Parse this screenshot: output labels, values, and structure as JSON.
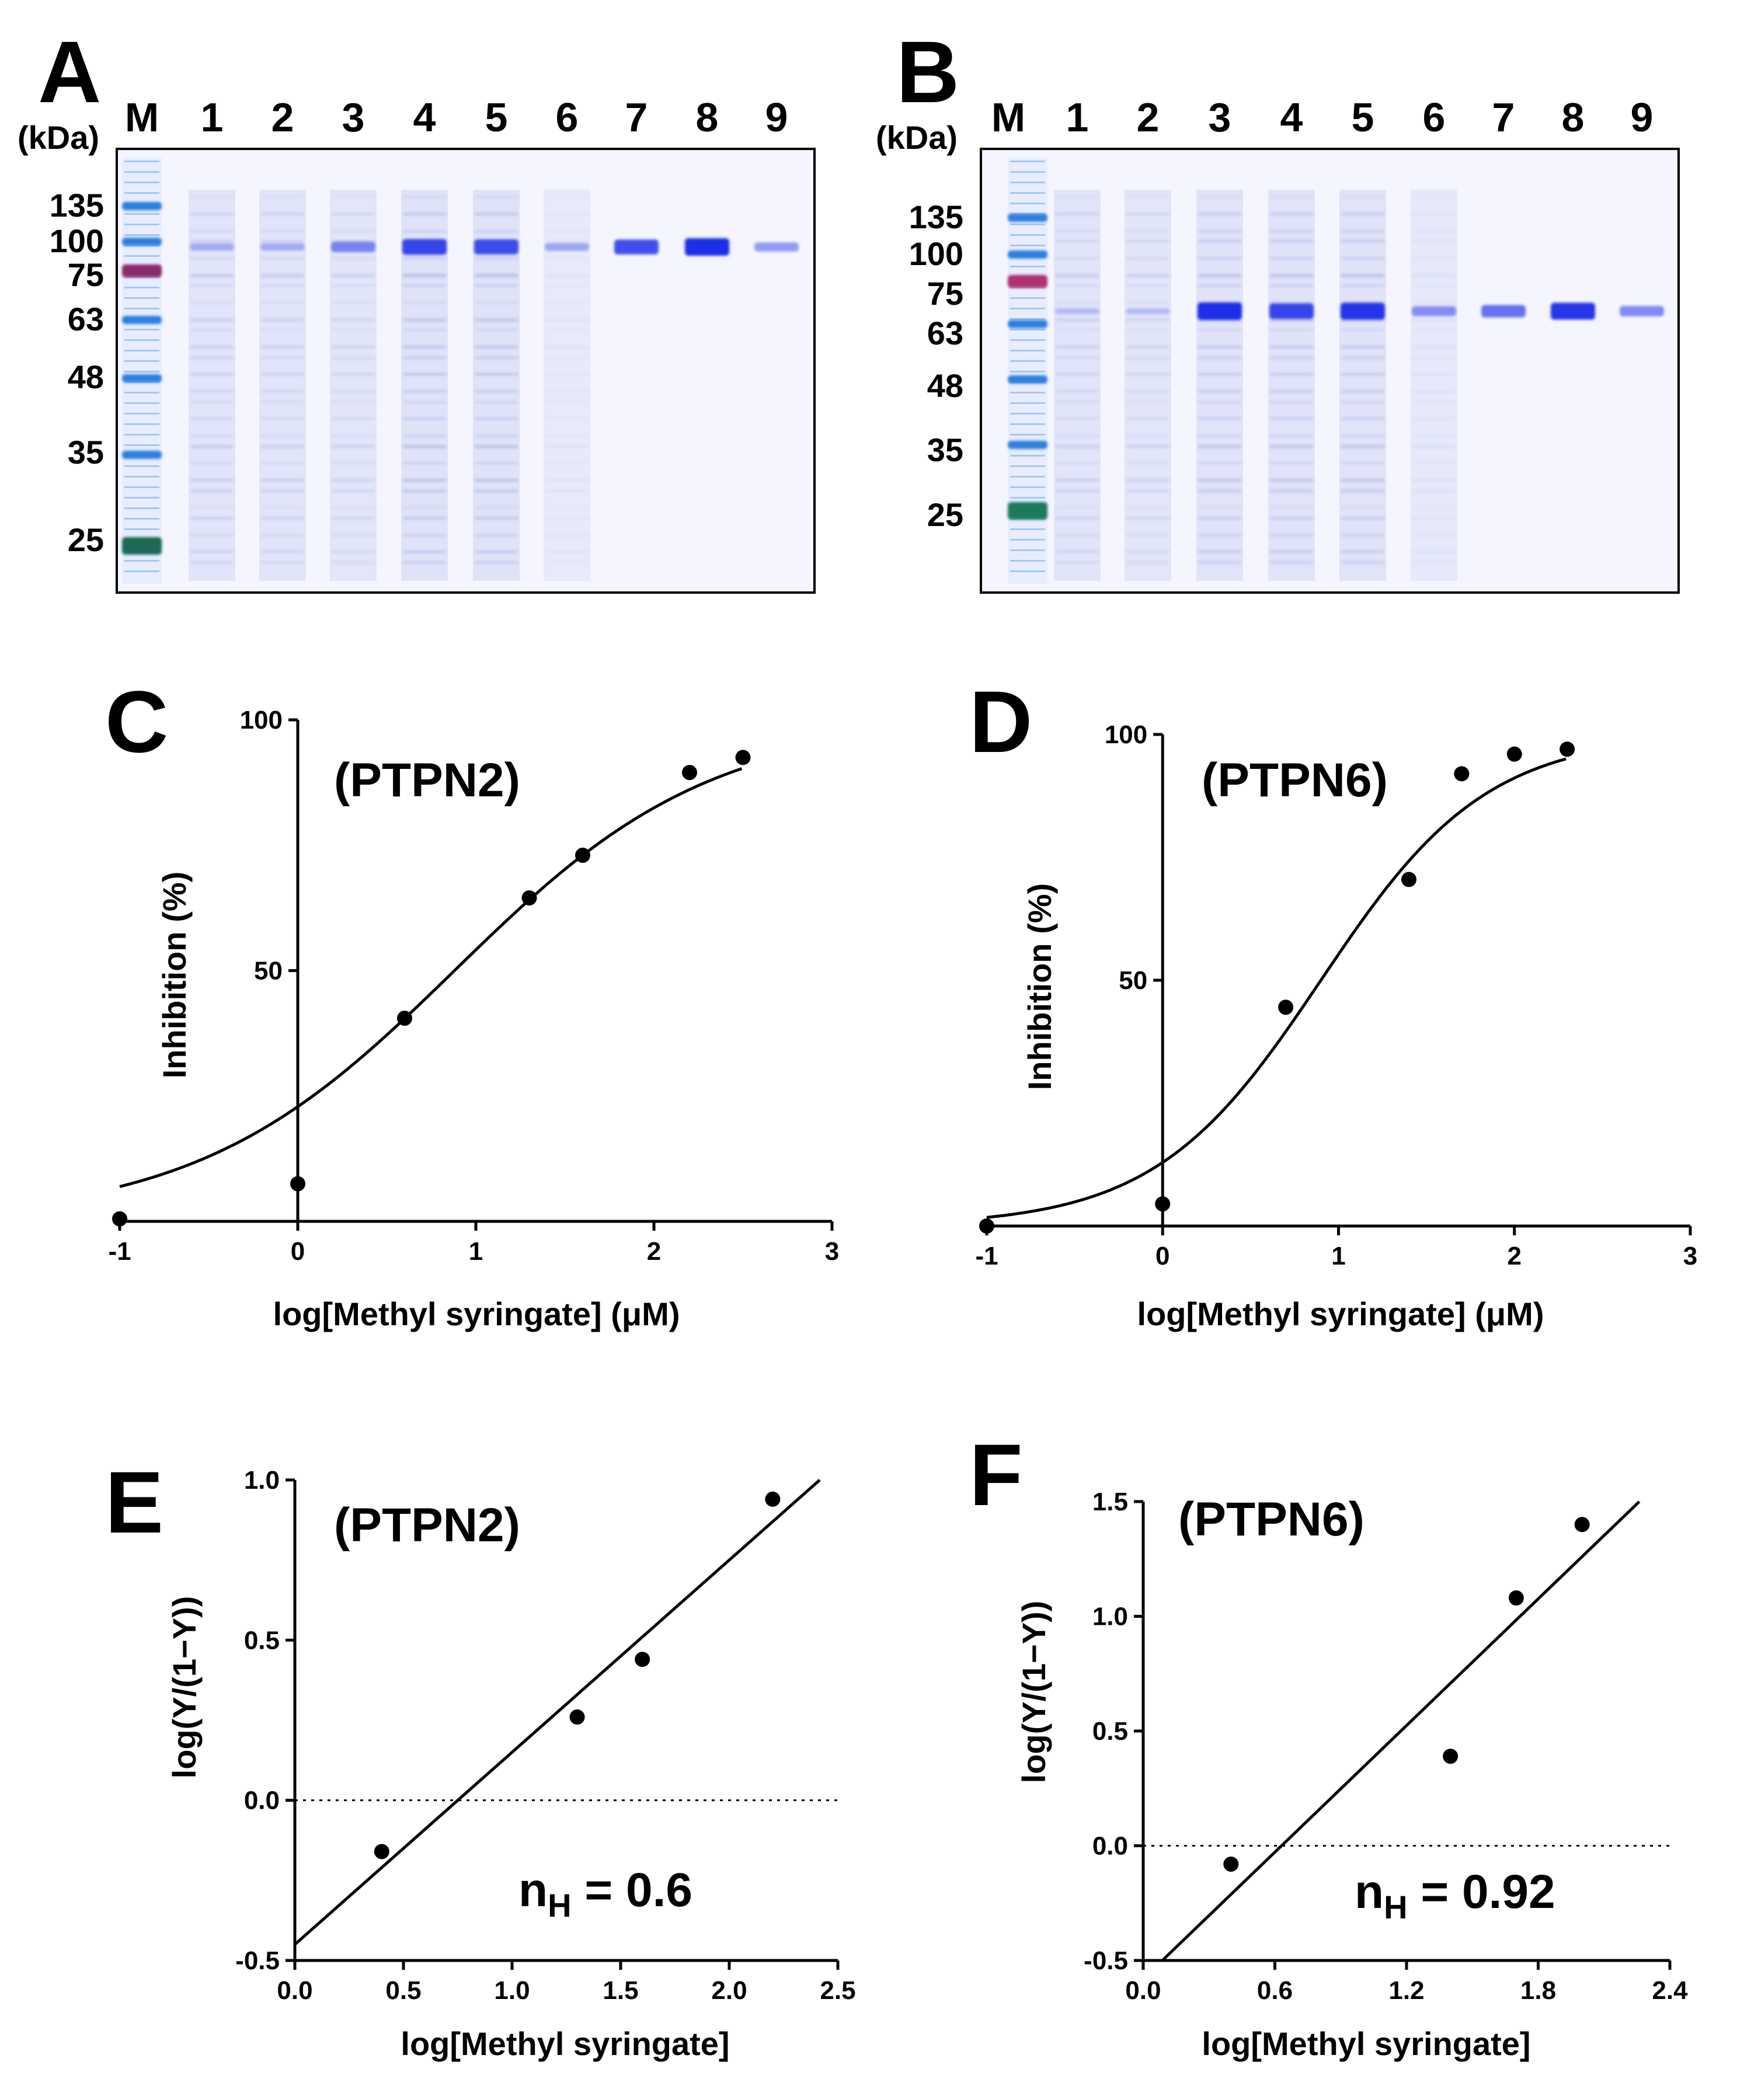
{
  "panel_labels": {
    "a": "A",
    "b": "B",
    "c": "C",
    "d": "D",
    "e": "E",
    "f": "F"
  },
  "gels": [
    {
      "unit_label": "(kDa)",
      "lane_labels": [
        "M",
        "1",
        "2",
        "3",
        "4",
        "5",
        "6",
        "7",
        "8",
        "9"
      ],
      "markers": [
        "135",
        "100",
        "75",
        "63",
        "48",
        "35",
        "25"
      ],
      "colors": {
        "marker_blue": "#2f7fe0",
        "marker_magenta": "#8a2a6a",
        "marker_green": "#1f6b55",
        "band": "#1a2ee8",
        "smear": "#8a95d8",
        "gel_bg": "#f4f5ff"
      },
      "lane_intensity": [
        0,
        0.55,
        0.5,
        0.45,
        0.7,
        0.7,
        0.15,
        0,
        0,
        0
      ],
      "target_band_intensity": [
        0,
        0.2,
        0.2,
        0.45,
        0.85,
        0.8,
        0.25,
        0.8,
        1.0,
        0.35
      ]
    },
    {
      "unit_label": "(kDa)",
      "lane_labels": [
        "M",
        "1",
        "2",
        "3",
        "4",
        "5",
        "6",
        "7",
        "8",
        "9"
      ],
      "markers": [
        "135",
        "100",
        "75",
        "63",
        "48",
        "35",
        "25"
      ],
      "colors": {
        "marker_blue": "#2f7fe0",
        "marker_magenta": "#b03070",
        "marker_green": "#1f7a5a",
        "band": "#1a2ee8",
        "smear": "#8a95d8",
        "gel_bg": "#f4f5ff"
      },
      "lane_intensity": [
        0,
        0.5,
        0.45,
        0.65,
        0.65,
        0.65,
        0.2,
        0,
        0,
        0
      ],
      "target_band_intensity": [
        0,
        0.1,
        0.1,
        1.0,
        0.85,
        0.95,
        0.4,
        0.6,
        0.95,
        0.45
      ]
    }
  ],
  "chart_data": [
    {
      "panel": "C",
      "type": "scatter",
      "title": "(PTPN2)",
      "xlabel": "log[Methyl syringate] (μM)",
      "ylabel": "Inhibition (%)",
      "xlim": [
        -1,
        3
      ],
      "ylim": [
        0,
        100
      ],
      "xticks": [
        "-1",
        "0",
        "1",
        "2",
        "3"
      ],
      "yticks": [
        "50",
        "100"
      ],
      "points": {
        "x": [
          -1,
          0,
          0.6,
          1.3,
          1.6,
          2.2,
          2.5
        ],
        "y": [
          0.5,
          7.5,
          40.5,
          64.5,
          73,
          89.5,
          92.5
        ]
      },
      "fit": {
        "type": "sigmoid",
        "logEC50": 0.88,
        "hill": 0.6,
        "bottom": 0,
        "top": 100
      }
    },
    {
      "panel": "D",
      "type": "scatter",
      "title": "(PTPN6)",
      "xlabel": "log[Methyl syringate] (μM)",
      "ylabel": "Inhibition (%)",
      "xlim": [
        -1,
        3
      ],
      "ylim": [
        0,
        100
      ],
      "xticks": [
        "-1",
        "0",
        "1",
        "2",
        "3"
      ],
      "yticks": [
        "50",
        "100"
      ],
      "points": {
        "x": [
          -1,
          0,
          0.7,
          1.4,
          1.7,
          2.0,
          2.3
        ],
        "y": [
          0,
          4.5,
          44.5,
          70.5,
          92,
          96,
          97
        ]
      },
      "fit": {
        "type": "sigmoid",
        "logEC50": 0.9,
        "hill": 0.92,
        "bottom": 0,
        "top": 100
      }
    },
    {
      "panel": "E",
      "type": "scatter",
      "title": "(PTPN2)",
      "xlabel": "log[Methyl syringate]",
      "ylabel": "log(Y/(1−Y))",
      "xlim": [
        0,
        2.5
      ],
      "ylim": [
        -0.5,
        1.0
      ],
      "xticks": [
        "0.0",
        "0.5",
        "1.0",
        "1.5",
        "2.0",
        "2.5"
      ],
      "yticks": [
        "-0.5",
        "0.0",
        "0.5",
        "1.0"
      ],
      "points": {
        "x": [
          0.4,
          1.3,
          1.6,
          2.2
        ],
        "y": [
          -0.16,
          0.26,
          0.44,
          0.94
        ]
      },
      "fit": {
        "type": "linear",
        "slope": 0.6,
        "intercept": -0.45
      },
      "reference_y": 0.0,
      "annotation": {
        "main": "n",
        "sub": "H",
        "value": " = 0.6"
      }
    },
    {
      "panel": "F",
      "type": "scatter",
      "title": "(PTPN6)",
      "xlabel": "log[Methyl syringate]",
      "ylabel": "log(Y/(1−Y))",
      "xlim": [
        0,
        2.4
      ],
      "ylim": [
        -0.5,
        1.5
      ],
      "xticks": [
        "0.0",
        "0.6",
        "1.2",
        "1.8",
        "2.4"
      ],
      "yticks": [
        "-0.5",
        "0.0",
        "0.5",
        "1.0",
        "1.5"
      ],
      "points": {
        "x": [
          0.4,
          1.4,
          1.7,
          2.0
        ],
        "y": [
          -0.08,
          0.39,
          1.08,
          1.4
        ]
      },
      "fit": {
        "type": "linear",
        "slope": 0.92,
        "intercept": -0.58
      },
      "reference_y": 0.0,
      "annotation": {
        "main": "n",
        "sub": "H",
        "value": " = 0.92"
      }
    }
  ]
}
